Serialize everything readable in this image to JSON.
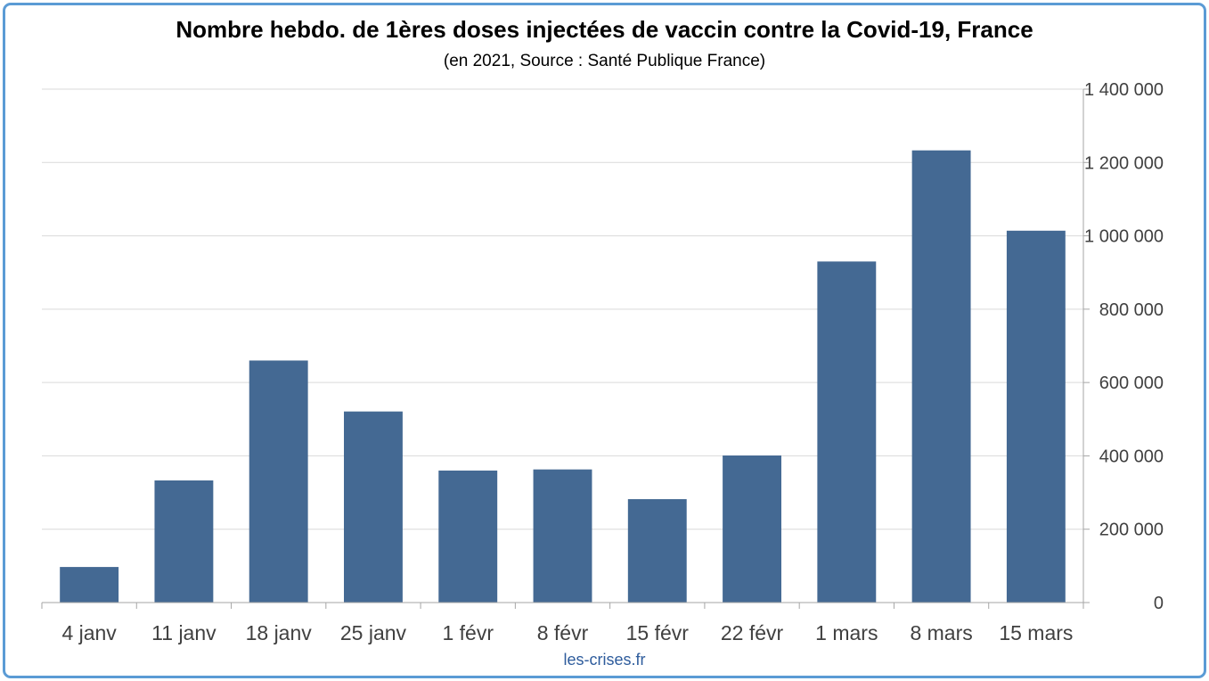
{
  "chart_data": {
    "type": "bar",
    "title": "Nombre hebdo. de 1ères doses injectées de vaccin contre la Covid-19, France",
    "subtitle": "(en 2021, Source : Santé Publique France)",
    "xlabel": "",
    "ylabel": "",
    "categories": [
      "4 janv",
      "11 janv",
      "18 janv",
      "25 janv",
      "1 févr",
      "8 févr",
      "15 févr",
      "22 févr",
      "1 mars",
      "8 mars",
      "15 mars"
    ],
    "values": [
      97000,
      333000,
      660000,
      521000,
      360000,
      363000,
      282000,
      401000,
      930000,
      1233000,
      1014000
    ],
    "ylim": [
      0,
      1400000
    ],
    "yticks": [
      0,
      200000,
      400000,
      600000,
      800000,
      1000000,
      1200000,
      1400000
    ],
    "ytick_labels": [
      "0",
      "200 000",
      "400 000",
      "600 000",
      "800 000",
      "1 000 000",
      "1 200 000",
      "1 400 000"
    ],
    "yaxis_side": "right",
    "grid": true,
    "legend": "none",
    "colors": {
      "bar": "#446993",
      "grid": "#d9d9d9",
      "axis": "#a6a6a6",
      "frame": "#5b9bd5"
    }
  },
  "footer": "les-crises.fr"
}
